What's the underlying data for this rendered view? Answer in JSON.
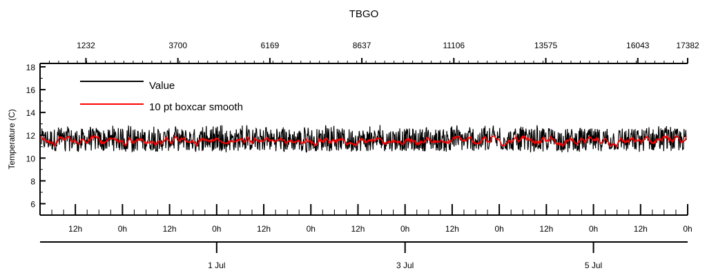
{
  "chart_data": {
    "type": "line",
    "title": "TBGO",
    "ylabel": "Temperature (C)",
    "ylim": [
      5,
      18.3
    ],
    "y_ticks": [
      6,
      8,
      10,
      12,
      14,
      16,
      18
    ],
    "top_axis": {
      "range": [
        0,
        17382
      ],
      "ticks": [
        1232,
        3700,
        6169,
        8637,
        11106,
        13575,
        16043,
        17382
      ],
      "tick_labels": [
        "1232",
        "3700",
        "6169",
        "8637",
        "11106",
        "13575",
        "16043",
        "17382"
      ]
    },
    "time_axis": {
      "start": "2026-06-29T03:00",
      "end": "2026-07-06T00:00",
      "hour_labels": [
        "12h",
        "0h",
        "12h",
        "0h",
        "12h",
        "0h",
        "12h",
        "0h",
        "12h",
        "0h",
        "12h",
        "0h",
        "12h",
        "0h"
      ],
      "hour_label_times": [
        "2026-06-29T12:00",
        "2026-06-30T00:00",
        "2026-06-30T12:00",
        "2026-07-01T00:00",
        "2026-07-01T12:00",
        "2026-07-02T00:00",
        "2026-07-02T12:00",
        "2026-07-03T00:00",
        "2026-07-03T12:00",
        "2026-07-04T00:00",
        "2026-07-04T12:00",
        "2026-07-05T00:00",
        "2026-07-05T12:00",
        "2026-07-06T00:00"
      ],
      "date_labels": [
        "1 Jul",
        "3 Jul",
        "5 Jul"
      ],
      "date_label_times": [
        "2026-07-01T00:00",
        "2026-07-03T00:00",
        "2026-07-05T00:00"
      ]
    },
    "legend": {
      "position": "top-left"
    },
    "grid": false,
    "series": [
      {
        "name": "Value",
        "color": "#000000",
        "mean": 11.6,
        "min": 10.5,
        "max": 12.9
      },
      {
        "name": "10 pt boxcar smooth",
        "color": "#ff0000",
        "mean": 11.5,
        "min": 10.9,
        "max": 12.3
      }
    ]
  }
}
